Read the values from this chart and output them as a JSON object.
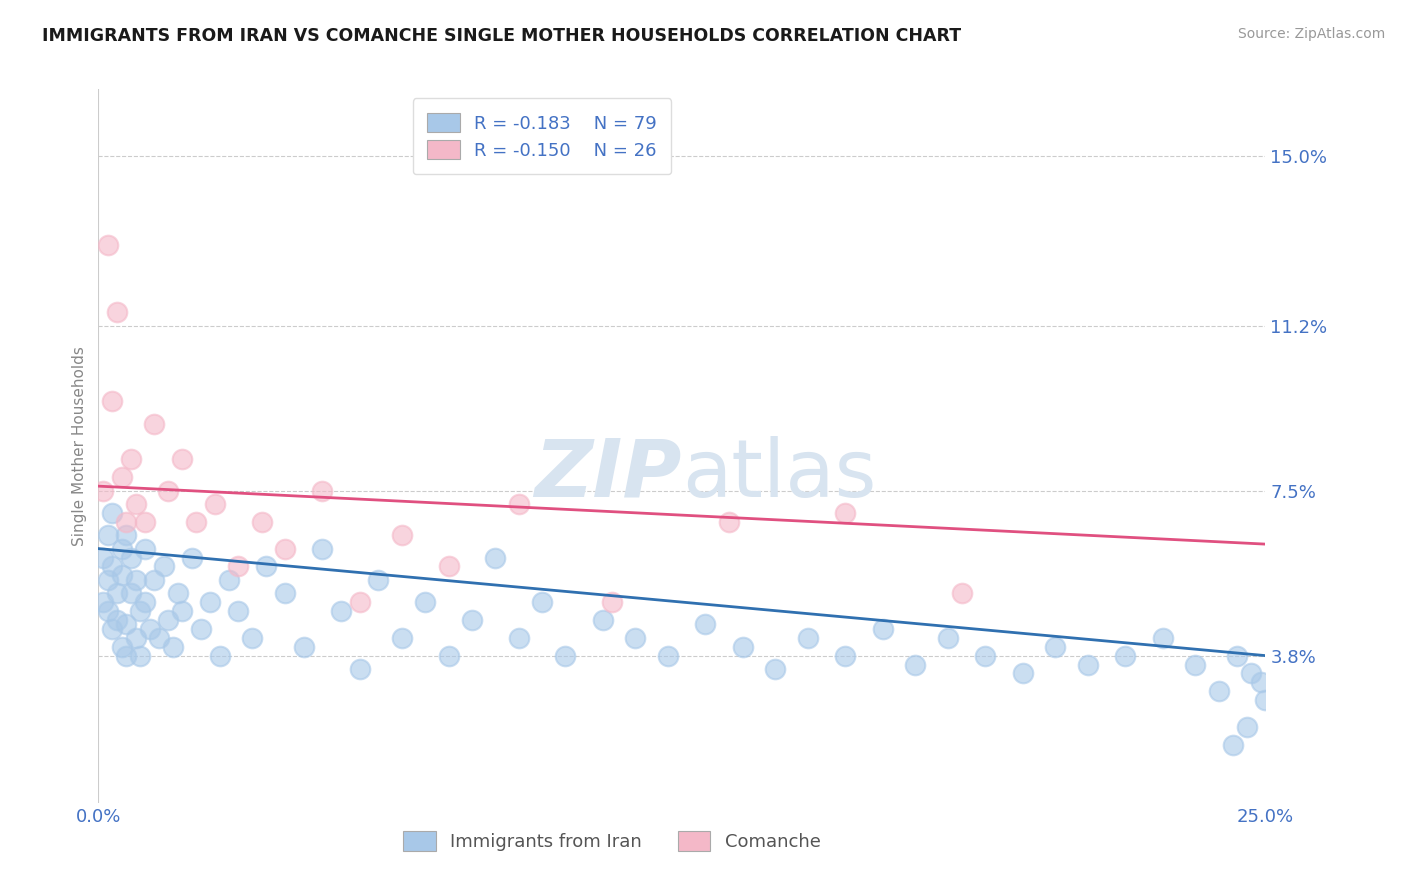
{
  "title": "IMMIGRANTS FROM IRAN VS COMANCHE SINGLE MOTHER HOUSEHOLDS CORRELATION CHART",
  "source_text": "Source: ZipAtlas.com",
  "ylabel": "Single Mother Households",
  "xlabel_iran": "Immigrants from Iran",
  "xlabel_comanche": "Comanche",
  "x_min": 0.0,
  "x_max": 0.25,
  "y_min": 0.005,
  "y_max": 0.165,
  "y_ticks": [
    0.038,
    0.075,
    0.112,
    0.15
  ],
  "y_tick_labels": [
    "3.8%",
    "7.5%",
    "11.2%",
    "15.0%"
  ],
  "x_ticks": [
    0.0,
    0.25
  ],
  "x_tick_labels": [
    "0.0%",
    "25.0%"
  ],
  "legend_r_iran": "R = -0.183",
  "legend_n_iran": "N = 79",
  "legend_r_comanche": "R = -0.150",
  "legend_n_comanche": "N = 26",
  "color_iran": "#a8c8e8",
  "color_comanche": "#f4b8c8",
  "color_line_iran": "#3070b0",
  "color_line_comanche": "#e05080",
  "color_tick_label": "#4472c4",
  "watermark_color": "#d8e4f0",
  "background_color": "#ffffff",
  "iran_line_start_y": 0.062,
  "iran_line_end_y": 0.038,
  "comanche_line_start_y": 0.076,
  "comanche_line_end_y": 0.063,
  "iran_x": [
    0.001,
    0.001,
    0.002,
    0.002,
    0.002,
    0.003,
    0.003,
    0.003,
    0.004,
    0.004,
    0.005,
    0.005,
    0.005,
    0.006,
    0.006,
    0.006,
    0.007,
    0.007,
    0.008,
    0.008,
    0.009,
    0.009,
    0.01,
    0.01,
    0.011,
    0.012,
    0.013,
    0.014,
    0.015,
    0.016,
    0.017,
    0.018,
    0.02,
    0.022,
    0.024,
    0.026,
    0.028,
    0.03,
    0.033,
    0.036,
    0.04,
    0.044,
    0.048,
    0.052,
    0.056,
    0.06,
    0.065,
    0.07,
    0.075,
    0.08,
    0.085,
    0.09,
    0.095,
    0.1,
    0.108,
    0.115,
    0.122,
    0.13,
    0.138,
    0.145,
    0.152,
    0.16,
    0.168,
    0.175,
    0.182,
    0.19,
    0.198,
    0.205,
    0.212,
    0.22,
    0.228,
    0.235,
    0.24,
    0.244,
    0.247,
    0.249,
    0.25,
    0.246,
    0.243
  ],
  "iran_y": [
    0.06,
    0.05,
    0.055,
    0.048,
    0.065,
    0.058,
    0.044,
    0.07,
    0.052,
    0.046,
    0.062,
    0.04,
    0.056,
    0.045,
    0.065,
    0.038,
    0.052,
    0.06,
    0.042,
    0.055,
    0.048,
    0.038,
    0.05,
    0.062,
    0.044,
    0.055,
    0.042,
    0.058,
    0.046,
    0.04,
    0.052,
    0.048,
    0.06,
    0.044,
    0.05,
    0.038,
    0.055,
    0.048,
    0.042,
    0.058,
    0.052,
    0.04,
    0.062,
    0.048,
    0.035,
    0.055,
    0.042,
    0.05,
    0.038,
    0.046,
    0.06,
    0.042,
    0.05,
    0.038,
    0.046,
    0.042,
    0.038,
    0.045,
    0.04,
    0.035,
    0.042,
    0.038,
    0.044,
    0.036,
    0.042,
    0.038,
    0.034,
    0.04,
    0.036,
    0.038,
    0.042,
    0.036,
    0.03,
    0.038,
    0.034,
    0.032,
    0.028,
    0.022,
    0.018
  ],
  "comanche_x": [
    0.001,
    0.002,
    0.003,
    0.004,
    0.005,
    0.006,
    0.007,
    0.008,
    0.01,
    0.012,
    0.015,
    0.018,
    0.021,
    0.025,
    0.03,
    0.035,
    0.04,
    0.048,
    0.056,
    0.065,
    0.075,
    0.09,
    0.11,
    0.135,
    0.16,
    0.185
  ],
  "comanche_y": [
    0.075,
    0.13,
    0.095,
    0.115,
    0.078,
    0.068,
    0.082,
    0.072,
    0.068,
    0.09,
    0.075,
    0.082,
    0.068,
    0.072,
    0.058,
    0.068,
    0.062,
    0.075,
    0.05,
    0.065,
    0.058,
    0.072,
    0.05,
    0.068,
    0.07,
    0.052
  ]
}
